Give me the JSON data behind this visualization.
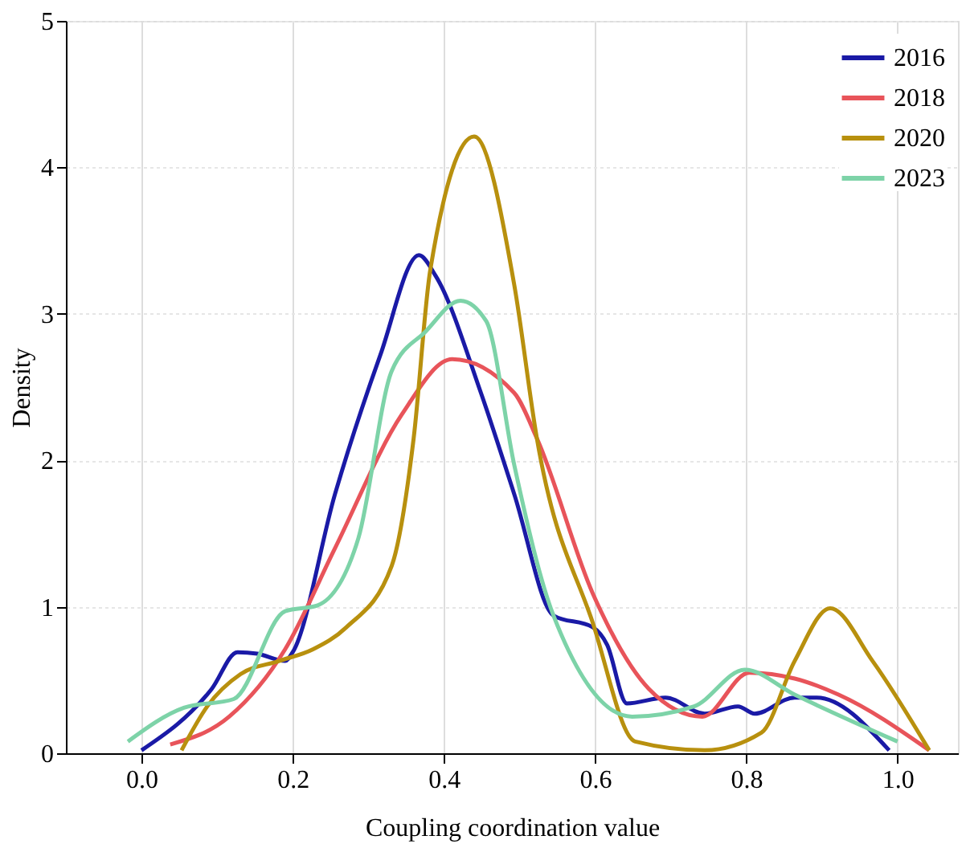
{
  "chart_data": {
    "type": "line",
    "xlabel": "Coupling coordination value",
    "ylabel": "Density",
    "xlim": [
      -0.1,
      1.08
    ],
    "xticks": [
      {
        "value": 0,
        "label": "0.0"
      },
      0.2,
      0.4,
      0.6,
      0.8,
      {
        "value": 1,
        "label": "1.0"
      }
    ],
    "ylim": [
      0,
      5
    ],
    "yticks": [
      0,
      1,
      2,
      3,
      4,
      5
    ],
    "grid": true,
    "legend": "top right",
    "marker": "none",
    "line_style": "solid",
    "series": [
      {
        "name": "2016",
        "color": "#1a1aa6",
        "x": [
          0.0,
          0.093,
          0.127,
          0.153,
          0.19,
          0.2,
          0.256,
          0.316,
          0.367,
          0.389,
          0.449,
          0.493,
          0.545,
          0.597,
          0.616,
          0.642,
          0.693,
          0.745,
          0.789,
          0.811,
          0.864,
          0.893,
          0.989
        ],
        "values": [
          0.02,
          0.44,
          0.69,
          0.68,
          0.63,
          0.69,
          1.77,
          2.72,
          3.4,
          3.26,
          2.46,
          1.77,
          0.94,
          0.86,
          0.74,
          0.34,
          0.38,
          0.27,
          0.32,
          0.27,
          0.38,
          0.38,
          0.02
        ]
      },
      {
        "name": "2018",
        "color": "#e8545a",
        "x": [
          0.038,
          0.116,
          0.19,
          0.256,
          0.344,
          0.411,
          0.493,
          0.523,
          0.597,
          0.671,
          0.742,
          0.804,
          0.864,
          0.922,
          1.042
        ],
        "values": [
          0.06,
          0.25,
          0.71,
          1.4,
          2.31,
          2.69,
          2.46,
          2.15,
          1.09,
          0.44,
          0.25,
          0.55,
          0.51,
          0.4,
          0.02
        ]
      },
      {
        "name": "2020",
        "color": "#b8900e",
        "x": [
          0.053,
          0.087,
          0.131,
          0.182,
          0.227,
          0.271,
          0.331,
          0.36,
          0.382,
          0.44,
          0.493,
          0.523,
          0.597,
          0.653,
          0.745,
          0.82,
          0.864,
          0.911,
          0.967,
          1.042
        ],
        "values": [
          0.02,
          0.32,
          0.54,
          0.63,
          0.71,
          0.86,
          1.28,
          2.15,
          3.3,
          4.21,
          3.2,
          2.15,
          0.89,
          0.08,
          0.02,
          0.14,
          0.63,
          0.99,
          0.63,
          0.02
        ]
      },
      {
        "name": "2023",
        "color": "#7dd3a8",
        "x": [
          -0.018,
          0.056,
          0.122,
          0.19,
          0.233,
          0.287,
          0.331,
          0.376,
          0.422,
          0.456,
          0.493,
          0.545,
          0.649,
          0.731,
          0.798,
          0.864,
          1.0
        ],
        "values": [
          0.08,
          0.31,
          0.37,
          0.97,
          1.01,
          1.47,
          2.61,
          2.88,
          3.09,
          2.95,
          1.97,
          0.94,
          0.25,
          0.32,
          0.57,
          0.4,
          0.08
        ]
      }
    ]
  }
}
